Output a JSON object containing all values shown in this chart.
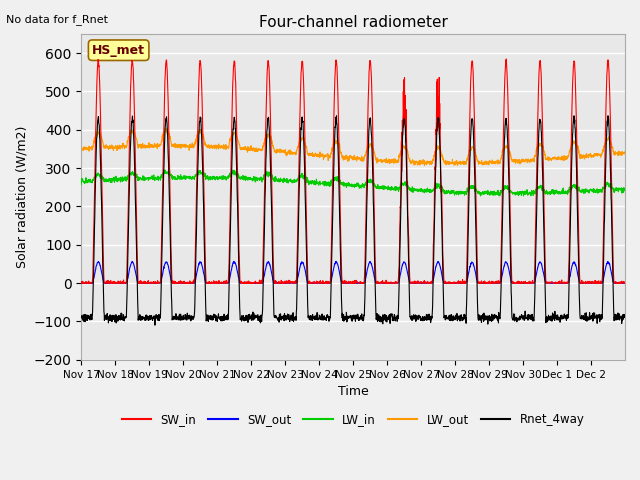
{
  "title": "Four-channel radiometer",
  "subtitle": "No data for f_Rnet",
  "ylabel": "Solar radiation (W/m2)",
  "xlabel": "Time",
  "station_label": "HS_met",
  "ylim": [
    -200,
    650
  ],
  "yticks": [
    -200,
    -100,
    0,
    100,
    200,
    300,
    400,
    500,
    600
  ],
  "x_tick_labels": [
    "Nov 17",
    "Nov 18",
    "Nov 19",
    "Nov 20",
    "Nov 21",
    "Nov 22",
    "Nov 23",
    "Nov 24",
    "Nov 25",
    "Nov 26",
    "Nov 27",
    "Nov 28",
    "Nov 29",
    "Nov 30",
    "Dec 1",
    "Dec 2"
  ],
  "colors": {
    "SW_in": "#ff0000",
    "SW_out": "#0000ff",
    "LW_in": "#00cc00",
    "LW_out": "#ff9900",
    "Rnet_4way": "#000000"
  },
  "legend_entries": [
    "SW_in",
    "SW_out",
    "LW_in",
    "LW_out",
    "Rnet_4way"
  ],
  "background_color": "#e8e8e8",
  "grid_color": "#ffffff",
  "n_days": 16,
  "points_per_day": 144,
  "SW_in_peak": 580,
  "SW_out_peak": 55,
  "LW_in_base": 265,
  "LW_out_base": 340,
  "Rnet_night": -90,
  "Rnet_day_peak": 430
}
